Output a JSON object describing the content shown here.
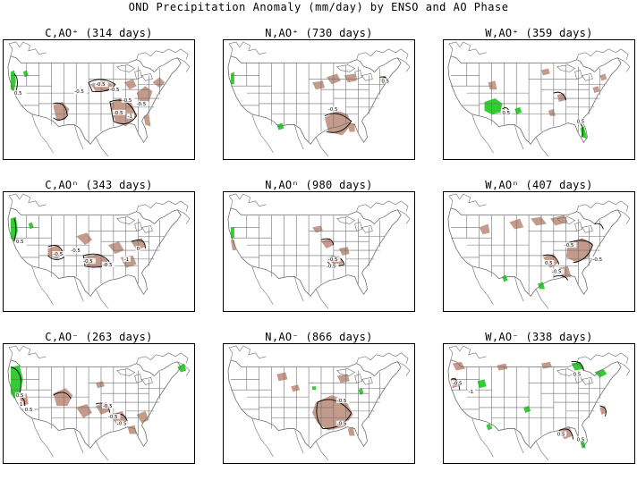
{
  "title": "OND Precipitation Anomaly (mm/day) by ENSO and AO Phase",
  "colors": {
    "wet": "#33cc33",
    "dry": "#c49a8a",
    "border": "#6f6f6f",
    "contour": "#000000"
  },
  "panels": [
    {
      "title": "C,AO⁺ (314 days)",
      "labels": [
        "-0.5",
        "0.5",
        "-0.5",
        "-0.5",
        "-0.5",
        "-1",
        "-0.5",
        "-0.5"
      ]
    },
    {
      "title": "N,AO⁺ (730 days)",
      "labels": [
        "-0.5",
        "0.5"
      ]
    },
    {
      "title": "W,AO⁺ (359 days)",
      "labels": [
        "0.5",
        "0.5"
      ]
    },
    {
      "title": "C,AOⁿ (343 days)",
      "labels": [
        "0.5",
        "-0.5",
        "-0.5",
        "-0.5",
        "-0.5",
        "-1",
        "0"
      ]
    },
    {
      "title": "N,AOⁿ (980 days)",
      "labels": [
        "-0.5",
        "-0.5"
      ]
    },
    {
      "title": "W,AOⁿ (407 days)",
      "labels": [
        "-0.5",
        "0.5",
        "-0.5",
        "-0.5"
      ]
    },
    {
      "title": "C,AO⁻ (263 days)",
      "labels": [
        "0.5",
        "1",
        "0.5",
        "-0.5",
        "-0.5",
        "-0.5"
      ]
    },
    {
      "title": "N,AO⁻ (866 days)",
      "labels": [
        "-0.5",
        "-0.5"
      ]
    },
    {
      "title": "W,AO⁻ (338 days)",
      "labels": [
        "-0.5",
        "-1",
        "0.5",
        "0.5",
        "0.5"
      ]
    }
  ]
}
